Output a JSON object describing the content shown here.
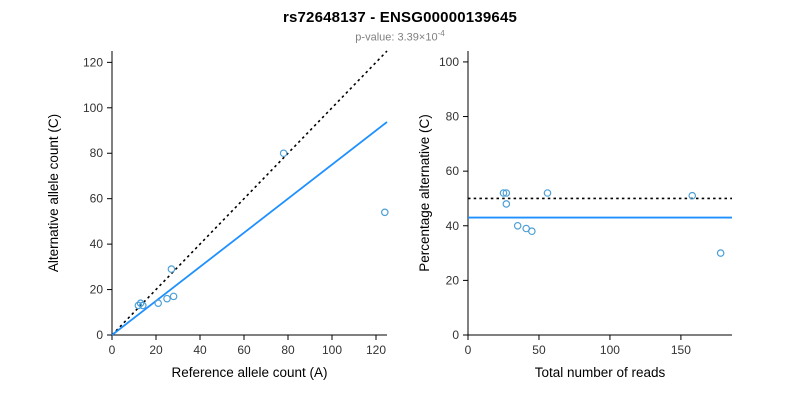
{
  "chart_data": {
    "type": "scatter",
    "title": "rs72648137 - ENSG00000139645",
    "p_value": {
      "prefix": "p-value: 3.39×10",
      "exponent": "-4"
    },
    "plots": [
      {
        "name": "allele-counts",
        "type": "scatter",
        "xlabel": "Reference allele count (A)",
        "ylabel": "Alternative allele count (C)",
        "xlim": [
          0,
          125
        ],
        "ylim": [
          0,
          125
        ],
        "xticks": [
          0,
          20,
          40,
          60,
          80,
          100,
          120
        ],
        "yticks": [
          0,
          20,
          40,
          60,
          80,
          100,
          120
        ],
        "points": [
          [
            12,
            13
          ],
          [
            13,
            14
          ],
          [
            14,
            13
          ],
          [
            21,
            14
          ],
          [
            25,
            16
          ],
          [
            27,
            29
          ],
          [
            28,
            17
          ],
          [
            78,
            80
          ],
          [
            124,
            54
          ]
        ],
        "lines": [
          {
            "name": "identity",
            "style": "dotted",
            "color": "#000000",
            "x1": 0,
            "y1": 0,
            "x2": 125,
            "y2": 125
          },
          {
            "name": "regression",
            "style": "solid",
            "color": "#1E90FF",
            "x1": 0,
            "y1": 0,
            "x2": 125,
            "y2": 93.75
          }
        ]
      },
      {
        "name": "percentage-vs-reads",
        "type": "scatter",
        "xlabel": "Total number of reads",
        "ylabel": "Percentage alternative (C)",
        "xlim": [
          0,
          186
        ],
        "ylim": [
          0,
          104
        ],
        "xticks": [
          0,
          50,
          100,
          150
        ],
        "yticks": [
          0,
          20,
          40,
          60,
          80,
          100
        ],
        "points": [
          [
            25,
            52
          ],
          [
            27,
            52
          ],
          [
            27,
            48
          ],
          [
            35,
            40
          ],
          [
            41,
            39
          ],
          [
            45,
            38
          ],
          [
            56,
            52
          ],
          [
            158,
            51
          ],
          [
            178,
            30
          ]
        ],
        "lines": [
          {
            "name": "expected-50pct",
            "style": "dotted",
            "color": "#000000",
            "x1": 0,
            "y1": 50,
            "x2": 186,
            "y2": 50
          },
          {
            "name": "fitted-ratio",
            "style": "solid",
            "color": "#1E90FF",
            "x1": 0,
            "y1": 43,
            "x2": 186,
            "y2": 43
          }
        ]
      }
    ],
    "legend": "off",
    "grid": "off"
  },
  "theme": {
    "axis_color": "#000000",
    "tick_label_color": "#333333",
    "axis_label_color": "#000000",
    "subtitle_color": "#7f7f7f",
    "accent_blue": "#1E90FF",
    "point_color": "#4D9FD6",
    "background": "#ffffff"
  }
}
